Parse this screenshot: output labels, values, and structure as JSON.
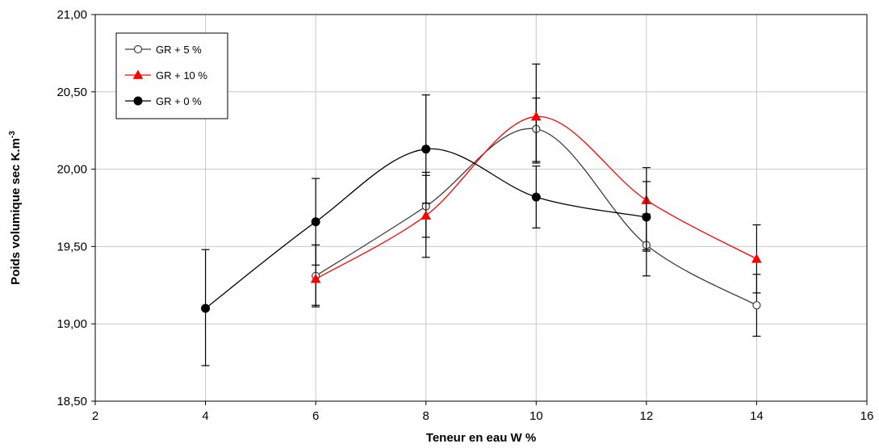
{
  "chart_data": {
    "type": "line",
    "xlabel": "Teneur en eau W %",
    "ylabel_main": "Poids volumique sec K.m",
    "ylabel_sup": "-3",
    "xlim": [
      2,
      16
    ],
    "ylim": [
      18.5,
      21.0
    ],
    "x_ticks": [
      2,
      4,
      6,
      8,
      10,
      12,
      14,
      16
    ],
    "y_ticks": [
      18.5,
      19.0,
      19.5,
      20.0,
      20.5,
      21.0
    ],
    "x_tick_labels": [
      "2",
      "4",
      "6",
      "8",
      "10",
      "12",
      "14",
      "16"
    ],
    "y_tick_labels": [
      "18,50",
      "19,00",
      "19,50",
      "20,00",
      "20,50",
      "21,00"
    ],
    "grid": true,
    "smooth": true,
    "legend_position": "top-left",
    "series": [
      {
        "name": "GR + 5 %",
        "color": "#404040",
        "marker": "circle-open",
        "x": [
          6,
          8,
          10,
          12,
          14
        ],
        "y": [
          19.31,
          19.76,
          20.26,
          19.51,
          19.12
        ],
        "err_low": [
          0.2,
          0.2,
          0.21,
          0.2,
          0.2
        ],
        "err_high": [
          0.2,
          0.2,
          0.2,
          0.2,
          0.2
        ]
      },
      {
        "name": "GR + 10 %",
        "color": "#ff0000",
        "marker": "triangle",
        "x": [
          6,
          8,
          10,
          12,
          14
        ],
        "y": [
          19.29,
          19.7,
          20.34,
          19.8,
          19.42
        ],
        "err_low": [
          0.17,
          0.27,
          0.3,
          0.32,
          0.22
        ],
        "err_high": [
          0.22,
          0.28,
          0.34,
          0.21,
          0.22
        ]
      },
      {
        "name": "GR + 0 %",
        "color": "#000000",
        "marker": "circle-filled",
        "x": [
          4,
          6,
          8,
          10,
          12
        ],
        "y": [
          19.1,
          19.66,
          20.13,
          19.82,
          19.69
        ],
        "err_low": [
          0.37,
          0.28,
          0.35,
          0.2,
          0.22
        ],
        "err_high": [
          0.38,
          0.28,
          0.35,
          0.2,
          0.23
        ]
      }
    ]
  }
}
